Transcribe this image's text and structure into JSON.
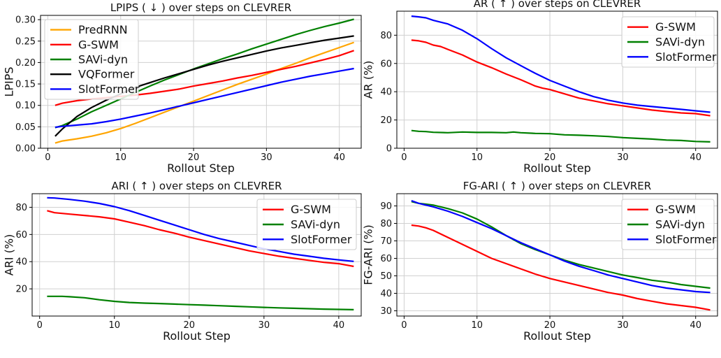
{
  "figure": {
    "colors": {
      "PredRNN": "#FFA500",
      "G-SWM": "#FF0000",
      "SAVi-dyn": "#008000",
      "VQFormer": "#000000",
      "SlotFormer": "#0000FF"
    }
  },
  "chart_data": [
    {
      "type": "line",
      "title": "LPIPS ( ↓ ) over steps on CLEVRER",
      "xlabel": "Rollout Step",
      "ylabel": "LPIPS",
      "xlim": [
        -1,
        43
      ],
      "ylim": [
        0,
        0.31
      ],
      "xticks": [
        0,
        10,
        20,
        30,
        40
      ],
      "yticks": [
        0.0,
        0.05,
        0.1,
        0.15,
        0.2,
        0.25,
        0.3
      ],
      "ytick_labels": [
        "0.00",
        "0.05",
        "0.10",
        "0.15",
        "0.20",
        "0.25",
        "0.30"
      ],
      "grid": true,
      "legend": "top-left",
      "series": [
        {
          "name": "PredRNN",
          "x": [
            1,
            2,
            4,
            6,
            8,
            10,
            12,
            14,
            16,
            18,
            20,
            22,
            24,
            26,
            28,
            30,
            32,
            34,
            36,
            38,
            40,
            42
          ],
          "y": [
            0.012,
            0.017,
            0.022,
            0.028,
            0.036,
            0.046,
            0.058,
            0.071,
            0.084,
            0.097,
            0.11,
            0.123,
            0.136,
            0.149,
            0.161,
            0.173,
            0.186,
            0.198,
            0.211,
            0.223,
            0.235,
            0.247
          ]
        },
        {
          "name": "G-SWM",
          "x": [
            1,
            2,
            4,
            6,
            8,
            10,
            12,
            14,
            16,
            18,
            20,
            22,
            24,
            26,
            28,
            30,
            32,
            34,
            36,
            38,
            40,
            42
          ],
          "y": [
            0.1,
            0.105,
            0.111,
            0.115,
            0.118,
            0.121,
            0.124,
            0.128,
            0.133,
            0.138,
            0.145,
            0.151,
            0.157,
            0.164,
            0.17,
            0.177,
            0.184,
            0.191,
            0.199,
            0.207,
            0.216,
            0.228
          ]
        },
        {
          "name": "SAVi-dyn",
          "x": [
            1,
            2,
            4,
            6,
            8,
            10,
            12,
            14,
            16,
            18,
            20,
            22,
            24,
            26,
            28,
            30,
            32,
            34,
            36,
            38,
            40,
            42
          ],
          "y": [
            0.048,
            0.053,
            0.068,
            0.085,
            0.1,
            0.115,
            0.13,
            0.145,
            0.159,
            0.172,
            0.185,
            0.197,
            0.209,
            0.22,
            0.232,
            0.243,
            0.254,
            0.265,
            0.275,
            0.284,
            0.292,
            0.301
          ]
        },
        {
          "name": "VQFormer",
          "x": [
            1,
            2,
            4,
            6,
            8,
            10,
            12,
            14,
            16,
            18,
            20,
            22,
            24,
            26,
            28,
            30,
            32,
            34,
            36,
            38,
            40,
            42
          ],
          "y": [
            0.028,
            0.045,
            0.074,
            0.095,
            0.112,
            0.127,
            0.142,
            0.153,
            0.164,
            0.174,
            0.184,
            0.194,
            0.203,
            0.211,
            0.219,
            0.227,
            0.234,
            0.24,
            0.246,
            0.252,
            0.257,
            0.262
          ]
        },
        {
          "name": "SlotFormer",
          "x": [
            1,
            2,
            4,
            6,
            8,
            10,
            12,
            14,
            16,
            18,
            20,
            22,
            24,
            26,
            28,
            30,
            32,
            34,
            36,
            38,
            40,
            42
          ],
          "y": [
            0.049,
            0.051,
            0.054,
            0.057,
            0.062,
            0.068,
            0.075,
            0.082,
            0.09,
            0.098,
            0.106,
            0.114,
            0.122,
            0.13,
            0.138,
            0.146,
            0.154,
            0.161,
            0.168,
            0.174,
            0.18,
            0.186
          ]
        }
      ]
    },
    {
      "type": "line",
      "title": "AR ( ↑ ) over steps on CLEVRER",
      "xlabel": "Rollout Step",
      "ylabel": "AR (%)",
      "xlim": [
        -1,
        43
      ],
      "ylim": [
        0,
        97
      ],
      "xticks": [
        0,
        10,
        20,
        30,
        40
      ],
      "yticks": [
        0,
        20,
        40,
        60,
        80
      ],
      "ytick_labels": [
        "0",
        "20",
        "40",
        "60",
        "80"
      ],
      "grid": true,
      "legend": "top-right",
      "series": [
        {
          "name": "G-SWM",
          "x": [
            1,
            2,
            3,
            4,
            5,
            6,
            8,
            10,
            12,
            14,
            16,
            18,
            19,
            20,
            22,
            24,
            26,
            28,
            30,
            32,
            34,
            36,
            38,
            40,
            42
          ],
          "y": [
            76.5,
            76,
            75,
            73,
            72,
            70,
            66,
            61,
            57,
            52.5,
            48.5,
            44,
            42.5,
            41.5,
            38.5,
            35.5,
            33.5,
            31.5,
            30,
            28.5,
            27,
            26,
            25,
            24.5,
            23
          ]
        },
        {
          "name": "SAVi-dyn",
          "x": [
            1,
            2,
            3,
            4,
            6,
            8,
            10,
            12,
            14,
            15,
            16,
            18,
            20,
            22,
            24,
            26,
            28,
            30,
            32,
            34,
            36,
            38,
            40,
            42
          ],
          "y": [
            12.5,
            12,
            11.8,
            11.3,
            11,
            11.5,
            11.2,
            11.2,
            11,
            11.5,
            11,
            10.5,
            10.3,
            9.5,
            9.2,
            8.8,
            8.3,
            7.5,
            7,
            6.5,
            5.8,
            5.5,
            4.8,
            4.5
          ]
        },
        {
          "name": "SlotFormer",
          "x": [
            1,
            2,
            3,
            4,
            6,
            8,
            10,
            12,
            14,
            16,
            18,
            20,
            22,
            24,
            26,
            28,
            30,
            32,
            34,
            36,
            38,
            40,
            42
          ],
          "y": [
            93.5,
            93,
            92.3,
            90.5,
            88,
            83.5,
            77.5,
            70.5,
            64,
            58.5,
            53,
            48,
            44,
            40,
            36.5,
            34,
            32,
            30.5,
            29.5,
            28.5,
            27.5,
            26.5,
            25.5
          ]
        }
      ]
    },
    {
      "type": "line",
      "title": "ARI ( ↑ ) over steps on CLEVRER",
      "xlabel": "Rollout Step",
      "ylabel": "ARI (%)",
      "xlim": [
        -1,
        43
      ],
      "ylim": [
        0,
        90
      ],
      "xticks": [
        0,
        10,
        20,
        30,
        40
      ],
      "yticks": [
        20,
        40,
        60,
        80
      ],
      "ytick_labels": [
        "20",
        "40",
        "60",
        "80"
      ],
      "grid": true,
      "legend": "top-right",
      "series": [
        {
          "name": "G-SWM",
          "x": [
            1,
            2,
            3,
            4,
            6,
            8,
            10,
            12,
            14,
            16,
            18,
            20,
            22,
            24,
            26,
            28,
            30,
            32,
            34,
            36,
            38,
            40,
            42
          ],
          "y": [
            77.5,
            76,
            75.5,
            75,
            74,
            73,
            71.5,
            69,
            66.5,
            63.5,
            61,
            58,
            55.5,
            53,
            50.5,
            48,
            46,
            44,
            42.5,
            41,
            39.5,
            38.5,
            36.5
          ]
        },
        {
          "name": "SAVi-dyn",
          "x": [
            1,
            2,
            3,
            4,
            6,
            8,
            10,
            12,
            14,
            16,
            18,
            20,
            22,
            24,
            26,
            28,
            30,
            32,
            34,
            36,
            38,
            40,
            42
          ],
          "y": [
            14.5,
            14.5,
            14.5,
            14.2,
            13.5,
            12,
            10.8,
            10,
            9.5,
            9.2,
            8.8,
            8.4,
            8,
            7.6,
            7.2,
            6.8,
            6.4,
            6,
            5.7,
            5.4,
            5.1,
            4.9,
            4.7
          ]
        },
        {
          "name": "SlotFormer",
          "x": [
            1,
            2,
            3,
            4,
            6,
            8,
            10,
            12,
            14,
            16,
            18,
            20,
            22,
            24,
            26,
            28,
            30,
            32,
            34,
            36,
            38,
            40,
            42
          ],
          "y": [
            87,
            86.8,
            86.3,
            85.8,
            84.5,
            82.8,
            80.5,
            77.5,
            74,
            70.5,
            67,
            63.5,
            60,
            57,
            54.5,
            52,
            49.5,
            47.5,
            45.5,
            44,
            42.5,
            41.3,
            40.2
          ]
        }
      ]
    },
    {
      "type": "line",
      "title": "FG-ARI ( ↑ ) over steps on CLEVRER",
      "xlabel": "Rollout Step",
      "ylabel": "FG-ARI (%)",
      "xlim": [
        -1,
        43
      ],
      "ylim": [
        27,
        97
      ],
      "xticks": [
        0,
        10,
        20,
        30,
        40
      ],
      "yticks": [
        30,
        40,
        50,
        60,
        70,
        80,
        90
      ],
      "ytick_labels": [
        "30",
        "40",
        "50",
        "60",
        "70",
        "80",
        "90"
      ],
      "grid": true,
      "legend": "top-right",
      "series": [
        {
          "name": "G-SWM",
          "x": [
            1,
            2,
            3,
            4,
            6,
            8,
            10,
            12,
            14,
            16,
            18,
            20,
            22,
            24,
            26,
            28,
            30,
            32,
            34,
            36,
            38,
            40,
            42
          ],
          "y": [
            79,
            78.5,
            77.5,
            76,
            72,
            68,
            64,
            60,
            57,
            54,
            51,
            48.5,
            46.5,
            44.5,
            42.5,
            40.5,
            39,
            37,
            35.5,
            34,
            33,
            32,
            30.5
          ]
        },
        {
          "name": "SAVi-dyn",
          "x": [
            1,
            2,
            3,
            4,
            6,
            8,
            10,
            12,
            14,
            16,
            18,
            20,
            22,
            24,
            26,
            28,
            30,
            32,
            34,
            36,
            38,
            40,
            42
          ],
          "y": [
            92.5,
            91.5,
            91,
            90.5,
            88.5,
            86,
            82.5,
            78,
            73,
            68.5,
            65,
            62,
            59,
            56.5,
            54.5,
            52.5,
            50.5,
            49,
            47.5,
            46.5,
            45,
            44,
            43
          ]
        },
        {
          "name": "SlotFormer",
          "x": [
            1,
            2,
            3,
            4,
            6,
            8,
            10,
            12,
            14,
            16,
            18,
            20,
            22,
            24,
            26,
            28,
            30,
            32,
            34,
            36,
            38,
            40,
            42
          ],
          "y": [
            93,
            91.5,
            90.5,
            89.5,
            87,
            84,
            80.5,
            77,
            73,
            69,
            65.5,
            62,
            58.5,
            55.5,
            53,
            50.5,
            48.5,
            46.5,
            44.5,
            43,
            42,
            41,
            40.5
          ]
        }
      ]
    }
  ]
}
